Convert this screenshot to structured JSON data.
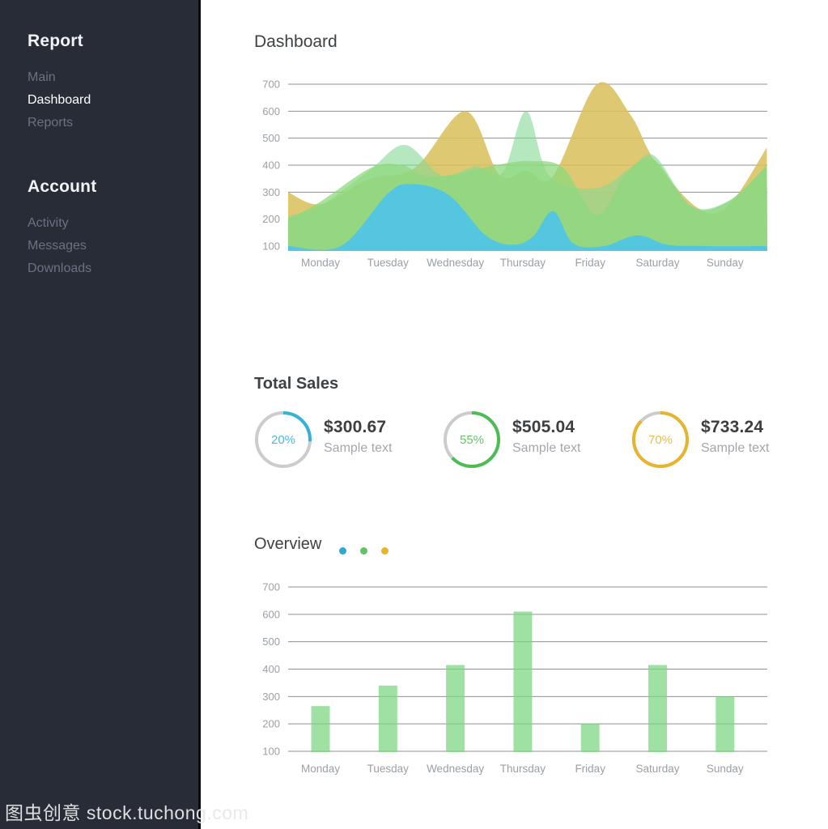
{
  "watermark": {
    "text": "图虫创意 stock.tuchong.com"
  },
  "sidebar": {
    "sections": [
      {
        "title": "Report",
        "items": [
          {
            "label": "Main",
            "active": false
          },
          {
            "label": "Dashboard",
            "active": true
          },
          {
            "label": "Reports",
            "active": false
          }
        ]
      },
      {
        "title": "Account",
        "items": [
          {
            "label": "Activity",
            "active": false
          },
          {
            "label": "Messages",
            "active": false
          },
          {
            "label": "Downloads",
            "active": false
          }
        ]
      }
    ]
  },
  "main": {
    "title": "Dashboard"
  },
  "total_sales": {
    "title": "Total Sales",
    "cards": [
      {
        "percent_label": "20%",
        "arc_percent": 26,
        "value": "$300.67",
        "subtitle": "Sample text",
        "color": "#35b3d3",
        "label_color": "#4db9d6"
      },
      {
        "percent_label": "55%",
        "arc_percent": 63,
        "value": "$505.04",
        "subtitle": "Sample text",
        "color": "#4cbd55",
        "label_color": "#66c46c"
      },
      {
        "percent_label": "70%",
        "arc_percent": 87,
        "value": "$733.24",
        "subtitle": "Sample text",
        "color": "#e6b42e",
        "label_color": "#dfbd58"
      }
    ]
  },
  "overview": {
    "title": "Overview",
    "legend_dots": [
      {
        "name": "blue",
        "color": "#2ba9d1"
      },
      {
        "name": "green",
        "color": "#5fc468"
      },
      {
        "name": "yellow",
        "color": "#e9b42f"
      }
    ]
  },
  "chart_data": [
    {
      "type": "area",
      "title": "Dashboard weekly area chart",
      "categories": [
        "Monday",
        "Tuesday",
        "Wednesday",
        "Thursday",
        "Friday",
        "Saturday",
        "Sunday"
      ],
      "ylim": [
        100,
        700
      ],
      "yticks": [
        100,
        200,
        300,
        400,
        500,
        600,
        700
      ],
      "x_extent": [
        -0.48,
        6.62
      ],
      "grid": true,
      "legend_position": "none",
      "series": [
        {
          "name": "yellow",
          "color": "#d9c25f",
          "opacity": 0.88,
          "points": [
            [
              -0.48,
              300
            ],
            [
              0,
              255
            ],
            [
              0.7,
              345
            ],
            [
              1.4,
              390
            ],
            [
              2.15,
              600
            ],
            [
              2.65,
              365
            ],
            [
              3.05,
              380
            ],
            [
              3.45,
              360
            ],
            [
              4.1,
              700
            ],
            [
              4.6,
              585
            ],
            [
              4.95,
              420
            ],
            [
              5.6,
              240
            ],
            [
              6.05,
              250
            ],
            [
              6.62,
              465
            ]
          ]
        },
        {
          "name": "green-light",
          "color": "#85d996",
          "opacity": 0.6,
          "points": [
            [
              -0.48,
              210
            ],
            [
              0,
              250
            ],
            [
              0.7,
              375
            ],
            [
              1.25,
              475
            ],
            [
              1.8,
              362
            ],
            [
              2.3,
              395
            ],
            [
              2.7,
              372
            ],
            [
              3.05,
              600
            ],
            [
              3.4,
              358
            ],
            [
              4.1,
              315
            ],
            [
              4.6,
              390
            ],
            [
              4.95,
              435
            ],
            [
              5.5,
              250
            ],
            [
              6.05,
              268
            ],
            [
              6.62,
              395
            ]
          ]
        },
        {
          "name": "green",
          "color": "#8dd87e",
          "opacity": 0.75,
          "points": [
            [
              -0.48,
              200
            ],
            [
              0,
              265
            ],
            [
              0.75,
              390
            ],
            [
              1.2,
              400
            ],
            [
              1.6,
              358
            ],
            [
              2.1,
              372
            ],
            [
              2.6,
              400
            ],
            [
              3.1,
              415
            ],
            [
              3.6,
              390
            ],
            [
              4.1,
              215
            ],
            [
              4.55,
              375
            ],
            [
              4.95,
              420
            ],
            [
              5.5,
              245
            ],
            [
              6.05,
              265
            ],
            [
              6.62,
              400
            ]
          ]
        },
        {
          "name": "blue",
          "color": "#55c6df",
          "opacity": 1,
          "points": [
            [
              -0.48,
              100
            ],
            [
              0.3,
              100
            ],
            [
              1.0,
              295
            ],
            [
              1.35,
              330
            ],
            [
              1.9,
              290
            ],
            [
              2.45,
              140
            ],
            [
              2.85,
              105
            ],
            [
              3.15,
              135
            ],
            [
              3.45,
              230
            ],
            [
              3.75,
              110
            ],
            [
              4.2,
              100
            ],
            [
              4.7,
              140
            ],
            [
              5.15,
              105
            ],
            [
              5.7,
              100
            ],
            [
              6.62,
              100
            ]
          ]
        }
      ]
    },
    {
      "type": "bar",
      "title": "Overview weekly bar chart",
      "categories": [
        "Monday",
        "Tuesday",
        "Wednesday",
        "Thursday",
        "Friday",
        "Saturday",
        "Sunday"
      ],
      "values": [
        265,
        340,
        415,
        610,
        200,
        415,
        300
      ],
      "bar_color": "#7fd584",
      "bar_opacity": 0.75,
      "ylim": [
        100,
        700
      ],
      "yticks": [
        100,
        200,
        300,
        400,
        500,
        600,
        700
      ],
      "grid": true,
      "legend_position": "top-inline-dots"
    }
  ],
  "axis_style": {
    "tick_color": "#9aa0a6",
    "grid_color": "#8f8f8f"
  }
}
